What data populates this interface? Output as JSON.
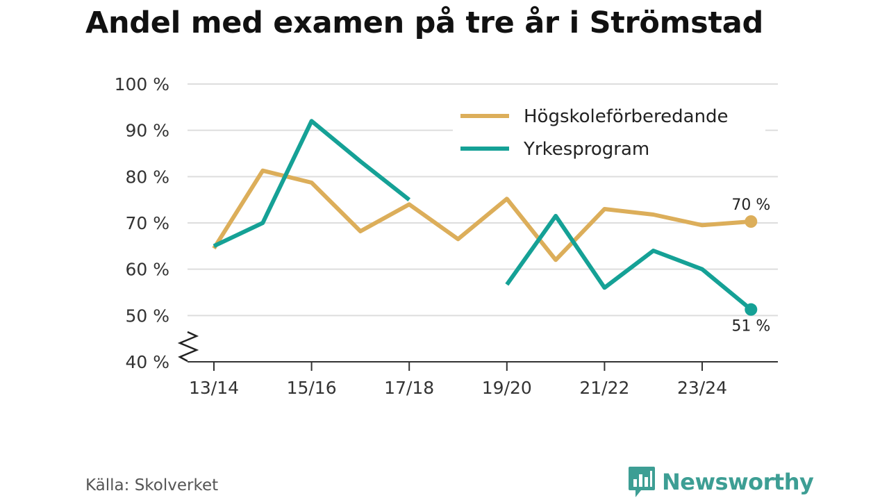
{
  "title": "Andel med examen på tre år i Strömstad",
  "source": "Källa: Skolverket",
  "brand": {
    "name": "Newsworthy",
    "color": "#3d9e94",
    "icon": "bar-chart-speech-bubble-icon"
  },
  "chart_data": {
    "type": "line",
    "title": "Andel med examen på tre år i Strömstad",
    "x": [
      "13/14",
      "14/15",
      "15/16",
      "16/17",
      "17/18",
      "18/19",
      "19/20",
      "20/21",
      "21/22",
      "22/23",
      "23/24",
      "24/25"
    ],
    "x_tick_labels": [
      "13/14",
      "15/16",
      "17/18",
      "19/20",
      "21/22",
      "23/24"
    ],
    "ylim": [
      40,
      100
    ],
    "y_ticks": [
      40,
      50,
      60,
      70,
      80,
      90,
      100
    ],
    "y_tick_labels": [
      "40 %",
      "50 %",
      "60 %",
      "70 %",
      "80 %",
      "90 %",
      "100 %"
    ],
    "y_axis_break": true,
    "grid": true,
    "legend_position": "top-right",
    "series": [
      {
        "name": "Högskoleförberedande",
        "color": "#dcae5a",
        "values": [
          64.5,
          81.3,
          78.7,
          68.2,
          74,
          66.5,
          75.2,
          62,
          73,
          71.8,
          69.5,
          70.3
        ],
        "end_label": "70 %"
      },
      {
        "name": "Yrkesprogram",
        "color": "#15a196",
        "values": [
          65,
          70,
          92,
          83.3,
          75,
          null,
          56.7,
          71.5,
          56,
          64,
          60,
          51.3
        ],
        "end_label": "51 %"
      }
    ]
  }
}
